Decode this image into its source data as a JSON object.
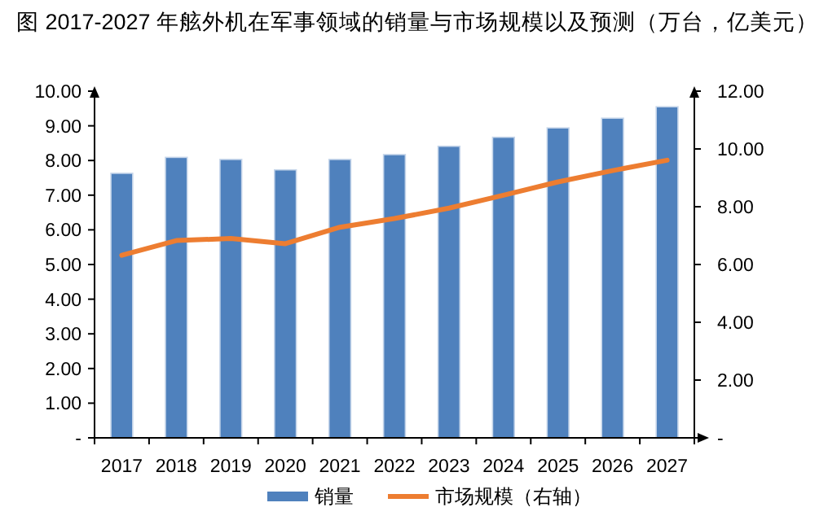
{
  "chart_data": {
    "type": "bar",
    "title": "图 2017-2027 年舷外机在军事领域的销量与市场规模以及预测（万台，亿美元）",
    "categories": [
      "2017",
      "2018",
      "2019",
      "2020",
      "2021",
      "2022",
      "2023",
      "2024",
      "2025",
      "2026",
      "2027"
    ],
    "series": [
      {
        "name": "销量",
        "color": "#4f81bd",
        "values": [
          7.63,
          8.09,
          8.03,
          7.73,
          8.03,
          8.17,
          8.41,
          8.67,
          8.94,
          9.22,
          9.55
        ]
      },
      {
        "name": "市场规模（右轴）",
        "type": "line",
        "axis": "y2",
        "color": "#ed7d31",
        "values": [
          6.32,
          6.83,
          6.9,
          6.72,
          7.29,
          7.59,
          7.95,
          8.4,
          8.86,
          9.25,
          9.61
        ]
      }
    ],
    "ylim": [
      0,
      10
    ],
    "yticks": [
      {
        "value": 0,
        "label": "-"
      },
      {
        "value": 1,
        "label": "1.00"
      },
      {
        "value": 2,
        "label": "2.00"
      },
      {
        "value": 3,
        "label": "3.00"
      },
      {
        "value": 4,
        "label": "4.00"
      },
      {
        "value": 5,
        "label": "5.00"
      },
      {
        "value": 6,
        "label": "6.00"
      },
      {
        "value": 7,
        "label": "7.00"
      },
      {
        "value": 8,
        "label": "8.00"
      },
      {
        "value": 9,
        "label": "9.00"
      },
      {
        "value": 10,
        "label": "10.00"
      }
    ],
    "y2lim": [
      0,
      12
    ],
    "y2ticks": [
      {
        "value": 0,
        "label": "-"
      },
      {
        "value": 2,
        "label": "2.00"
      },
      {
        "value": 4,
        "label": "4.00"
      },
      {
        "value": 6,
        "label": "6.00"
      },
      {
        "value": 8,
        "label": "8.00"
      },
      {
        "value": 10,
        "label": "10.00"
      },
      {
        "value": 12,
        "label": "12.00"
      }
    ],
    "legend": "bottom",
    "grid": false
  }
}
